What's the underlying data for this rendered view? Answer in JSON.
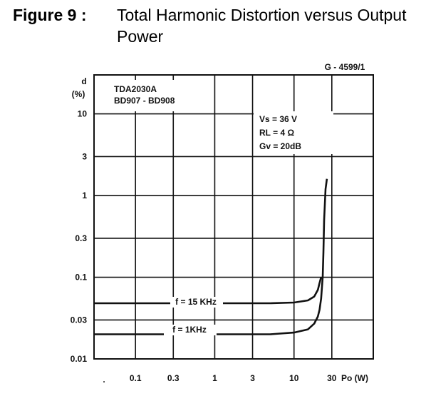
{
  "figure": {
    "number": "Figure 9 :",
    "caption": "Total Harmonic Distortion versus Output Power"
  },
  "chart_data": {
    "type": "line",
    "title": "",
    "code": "G - 4599/1",
    "ylabel": "d",
    "yunit": "(%)",
    "xlabel": "Po (W)",
    "xscale": "log",
    "yscale": "log",
    "grid": true,
    "xlim": [
      0.03,
      100
    ],
    "ylim": [
      0.01,
      30
    ],
    "x_ticks": [
      {
        "value": 0.1,
        "label": "0.1"
      },
      {
        "value": 0.3,
        "label": "0.3"
      },
      {
        "value": 1,
        "label": "1"
      },
      {
        "value": 3,
        "label": "3"
      },
      {
        "value": 10,
        "label": "10"
      },
      {
        "value": 30,
        "label": "30"
      }
    ],
    "y_ticks": [
      {
        "value": 0.01,
        "label": "0.01"
      },
      {
        "value": 0.03,
        "label": "0.03"
      },
      {
        "value": 0.1,
        "label": "0.1"
      },
      {
        "value": 0.3,
        "label": "0.3"
      },
      {
        "value": 1,
        "label": "1"
      },
      {
        "value": 3,
        "label": "3"
      },
      {
        "value": 10,
        "label": "10"
      }
    ],
    "device_lines": [
      "TDA2030A",
      "BD907 - BD908"
    ],
    "conditions": [
      "Vs = 36 V",
      "RL = 4 Ω",
      "Gv = 20dB"
    ],
    "series": [
      {
        "name": "f = 15 KHz",
        "x": [
          0.03,
          1,
          5,
          10,
          15,
          18,
          20,
          21,
          22
        ],
        "y": [
          0.048,
          0.048,
          0.048,
          0.049,
          0.052,
          0.058,
          0.07,
          0.085,
          0.1
        ]
      },
      {
        "name": "f = 1KHz",
        "x": [
          0.03,
          1,
          5,
          10,
          15,
          18,
          20,
          21,
          22,
          23,
          23.5,
          24,
          25,
          26
        ],
        "y": [
          0.02,
          0.02,
          0.02,
          0.021,
          0.023,
          0.027,
          0.033,
          0.04,
          0.055,
          0.1,
          0.2,
          0.5,
          1.2,
          1.6
        ]
      }
    ]
  }
}
